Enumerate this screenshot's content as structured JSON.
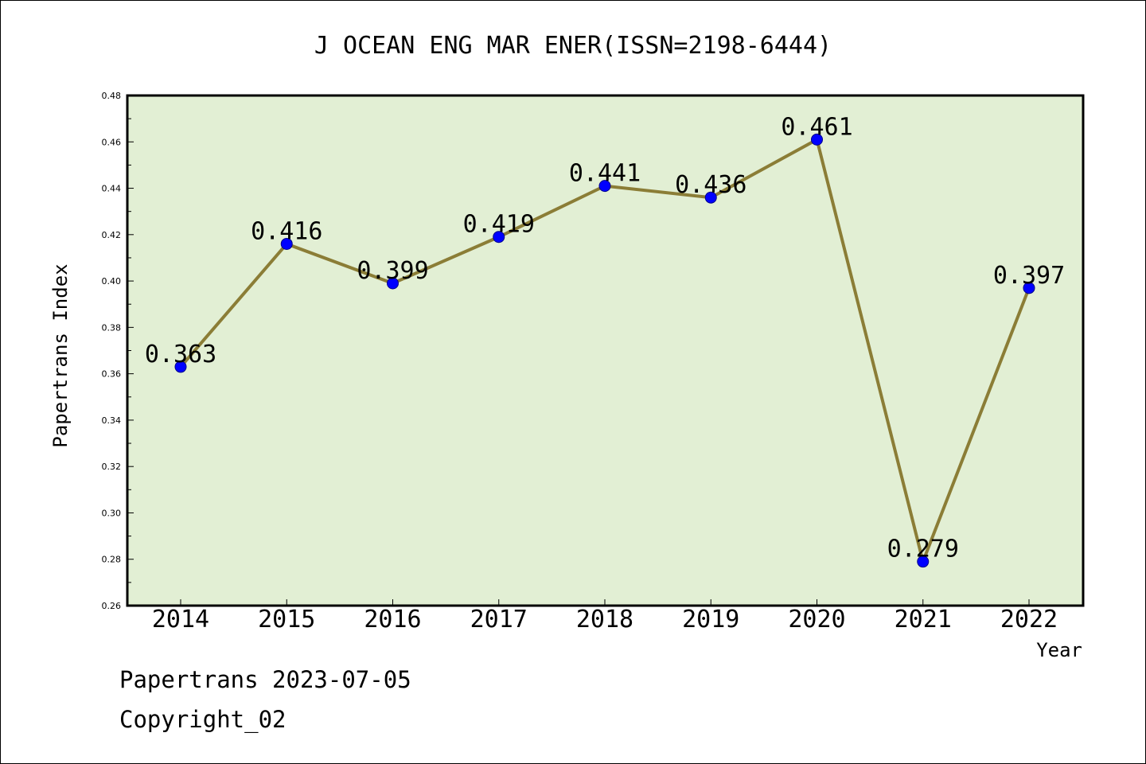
{
  "footer": {
    "line1": "Papertrans 2023-07-05",
    "line2": "Copyright_02"
  },
  "chart_data": {
    "type": "line",
    "title": "J OCEAN ENG MAR ENER(ISSN=2198-6444)",
    "xlabel": "Year",
    "ylabel": "Papertrans Index",
    "categories": [
      "2014",
      "2015",
      "2016",
      "2017",
      "2018",
      "2019",
      "2020",
      "2021",
      "2022"
    ],
    "values": [
      0.363,
      0.416,
      0.399,
      0.419,
      0.441,
      0.436,
      0.461,
      0.279,
      0.397
    ],
    "value_labels": [
      "0.363",
      "0.416",
      "0.399",
      "0.419",
      "0.441",
      "0.436",
      "0.461",
      "0.279",
      "0.397"
    ],
    "ylim": [
      0.26,
      0.48
    ],
    "yticks": [
      "0.26",
      "0.28",
      "0.30",
      "0.32",
      "0.34",
      "0.36",
      "0.38",
      "0.40",
      "0.42",
      "0.44",
      "0.46",
      "0.48"
    ],
    "grid": false,
    "colors": {
      "plot_background": "#e2efd4",
      "line": "#8b7d36",
      "marker": "#0000ff",
      "marker_edge": "#00008b"
    }
  }
}
